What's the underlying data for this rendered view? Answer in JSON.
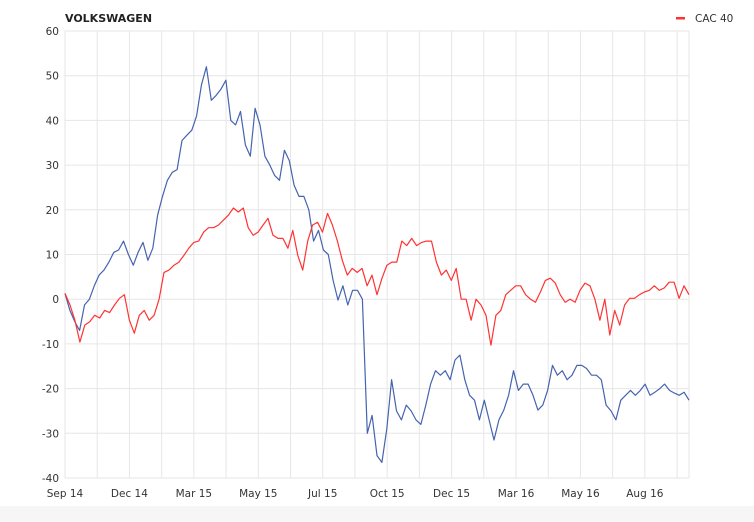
{
  "chart_data": {
    "type": "line",
    "title": "VOLKSWAGEN",
    "xlabel": "",
    "ylabel": "",
    "ylim": [
      -40,
      60
    ],
    "yticks": [
      60,
      50,
      40,
      30,
      20,
      10,
      0,
      -10,
      -20,
      -30,
      -40
    ],
    "xlim_months": [
      0,
      19.37
    ],
    "xticks": [
      {
        "label": "Sep 14",
        "month": 0
      },
      {
        "label": "Dec 14",
        "month": 2
      },
      {
        "label": "Mar 15",
        "month": 4
      },
      {
        "label": "May 15",
        "month": 6
      },
      {
        "label": "Jul 15",
        "month": 8
      },
      {
        "label": "Oct 15",
        "month": 10
      },
      {
        "label": "Dec 15",
        "month": 12
      },
      {
        "label": "Mar 16",
        "month": 14
      },
      {
        "label": "May 16",
        "month": 16
      },
      {
        "label": "Aug 16",
        "month": 18
      }
    ],
    "grid": true,
    "legend": {
      "position": "top-right",
      "entries": [
        {
          "label": "CAC 40",
          "color": "#ff3333"
        }
      ]
    },
    "series": [
      {
        "name": "VOLKSWAGEN",
        "color": "#4563ae",
        "values": [
          1.3,
          -2.5,
          -5,
          -7,
          -1.3,
          0,
          3,
          5.4,
          6.5,
          8.3,
          10.5,
          11,
          13,
          10,
          7.6,
          10.5,
          12.7,
          8.7,
          11.4,
          18.8,
          23,
          26.6,
          28.4,
          29,
          35.5,
          36.7,
          37.8,
          41,
          48,
          52,
          44.5,
          45.6,
          47,
          49,
          40,
          39,
          42,
          34.5,
          32,
          42.7,
          39,
          32,
          30,
          27.7,
          26.6,
          33.3,
          31,
          25.5,
          23,
          23,
          20,
          13,
          15.4,
          11,
          10,
          4.2,
          -0.2,
          3,
          -1.3,
          2,
          2,
          0,
          -30,
          -26,
          -35,
          -36.5,
          -29,
          -18,
          -25,
          -27,
          -23.7,
          -25,
          -27,
          -28,
          -23.7,
          -19,
          -16,
          -17,
          -16,
          -18,
          -13.6,
          -12.5,
          -18,
          -21.5,
          -22.6,
          -27,
          -22.6,
          -27,
          -31.5,
          -27,
          -24.8,
          -21.5,
          -16,
          -20.4,
          -19,
          -19,
          -21.5,
          -24.8,
          -23.7,
          -20.4,
          -14.8,
          -17,
          -16,
          -18,
          -17,
          -14.8,
          -14.8,
          -15.5,
          -17,
          -17,
          -18,
          -23.7,
          -25,
          -27,
          -22.6,
          -21.5,
          -20.4,
          -21.5,
          -20.4,
          -19,
          -21.5,
          -20.8,
          -20,
          -19,
          -20.4,
          -21,
          -21.5,
          -20.8,
          -22.6
        ]
      },
      {
        "name": "CAC 40",
        "color": "#ff3333",
        "values": [
          1.3,
          -1.3,
          -4.7,
          -9.6,
          -5.8,
          -5,
          -3.6,
          -4.2,
          -2.5,
          -3,
          -1.3,
          0.2,
          1,
          -4.7,
          -7.6,
          -3.6,
          -2.5,
          -4.7,
          -3.6,
          0,
          6,
          6.5,
          7.6,
          8.3,
          9.8,
          11.4,
          12.7,
          13,
          15,
          16,
          16,
          16.6,
          17.7,
          18.8,
          20.4,
          19.5,
          20.4,
          16,
          14.3,
          15,
          16.6,
          18.1,
          14.3,
          13.6,
          13.6,
          11.4,
          15.4,
          9.8,
          6.5,
          13,
          16.6,
          17.2,
          15,
          19.2,
          16.6,
          13,
          8.7,
          5.4,
          6.9,
          6,
          6.9,
          3,
          5.4,
          1,
          4.7,
          7.6,
          8.3,
          8.3,
          13,
          12,
          13.6,
          12,
          12.7,
          13,
          13,
          8.3,
          5.4,
          6.5,
          4.2,
          6.9,
          0,
          0,
          -4.7,
          0,
          -1.3,
          -3.6,
          -10.3,
          -3.6,
          -2.5,
          1,
          2,
          3,
          3,
          1,
          0,
          -0.7,
          1.6,
          4.2,
          4.7,
          3.6,
          1,
          -0.7,
          0,
          -0.7,
          2,
          3.6,
          3,
          0,
          -4.7,
          0,
          -8,
          -2.5,
          -5.8,
          -1.3,
          0.2,
          0.2,
          1,
          1.6,
          2,
          3,
          2,
          2.5,
          3.8,
          3.8,
          0.2,
          3,
          1
        ]
      }
    ]
  }
}
